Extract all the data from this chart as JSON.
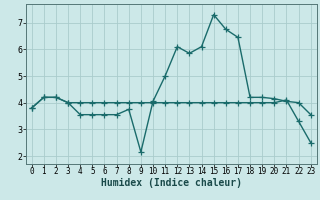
{
  "title": "",
  "xlabel": "Humidex (Indice chaleur)",
  "bg_color": "#cce8e8",
  "line_color": "#1a6b6b",
  "grid_color": "#aacccc",
  "line1_x": [
    0,
    1,
    2,
    3,
    4,
    5,
    6,
    7,
    8,
    9,
    10,
    11,
    12,
    13,
    14,
    15,
    16,
    17,
    18,
    19,
    20,
    21,
    22,
    23
  ],
  "line1_y": [
    3.8,
    4.2,
    4.2,
    4.0,
    3.55,
    3.55,
    3.55,
    3.55,
    3.75,
    2.15,
    4.05,
    5.0,
    6.1,
    5.85,
    6.1,
    7.3,
    6.75,
    6.45,
    4.2,
    4.2,
    4.15,
    4.05,
    4.0,
    3.55
  ],
  "line2_x": [
    0,
    1,
    2,
    3,
    4,
    5,
    6,
    7,
    8,
    9,
    10,
    11,
    12,
    13,
    14,
    15,
    16,
    17,
    18,
    19,
    20,
    21,
    22,
    23
  ],
  "line2_y": [
    3.8,
    4.2,
    4.2,
    4.0,
    4.0,
    4.0,
    4.0,
    4.0,
    4.0,
    4.0,
    4.0,
    4.0,
    4.0,
    4.0,
    4.0,
    4.0,
    4.0,
    4.0,
    4.0,
    4.0,
    4.0,
    4.1,
    3.3,
    2.5
  ],
  "ylim": [
    1.7,
    7.7
  ],
  "xlim": [
    -0.5,
    23.5
  ],
  "yticks": [
    2,
    3,
    4,
    5,
    6,
    7
  ],
  "xticks": [
    0,
    1,
    2,
    3,
    4,
    5,
    6,
    7,
    8,
    9,
    10,
    11,
    12,
    13,
    14,
    15,
    16,
    17,
    18,
    19,
    20,
    21,
    22,
    23
  ],
  "marker": "+",
  "markersize": 4,
  "linewidth": 1.0,
  "fontsize_label": 7,
  "fontsize_tick": 5.5
}
